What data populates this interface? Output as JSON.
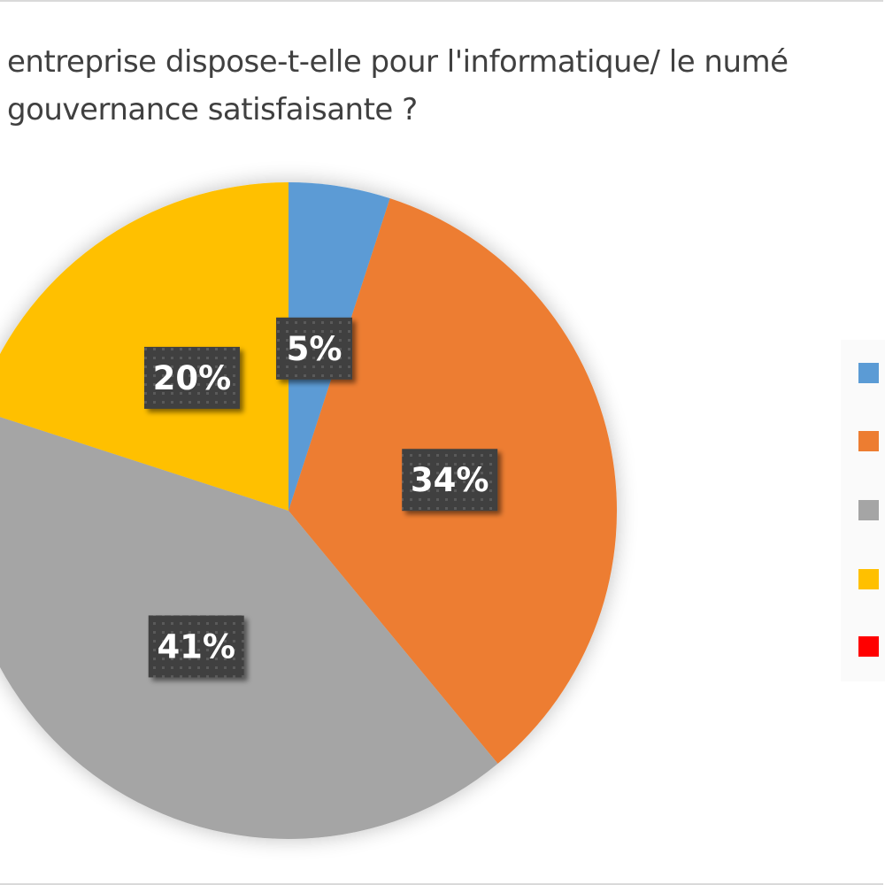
{
  "chart_data": {
    "type": "pie",
    "title_lines": [
      "entreprise dispose-t-elle pour l'informatique/ le numé",
      "gouvernance satisfaisante ?"
    ],
    "slices": [
      {
        "label": "5%",
        "value": 5,
        "color": "#5B9BD5"
      },
      {
        "label": "34%",
        "value": 34,
        "color": "#ED7D31"
      },
      {
        "label": "41%",
        "value": 41,
        "color": "#A5A5A5"
      },
      {
        "label": "20%",
        "value": 20,
        "color": "#FFC000"
      },
      {
        "label": "",
        "value": 0,
        "color": "#FF0000"
      }
    ],
    "legend": {
      "placement": "right",
      "entries_colors": [
        "#5B9BD5",
        "#ED7D31",
        "#A5A5A5",
        "#FFC000",
        "#FF0000"
      ]
    }
  }
}
